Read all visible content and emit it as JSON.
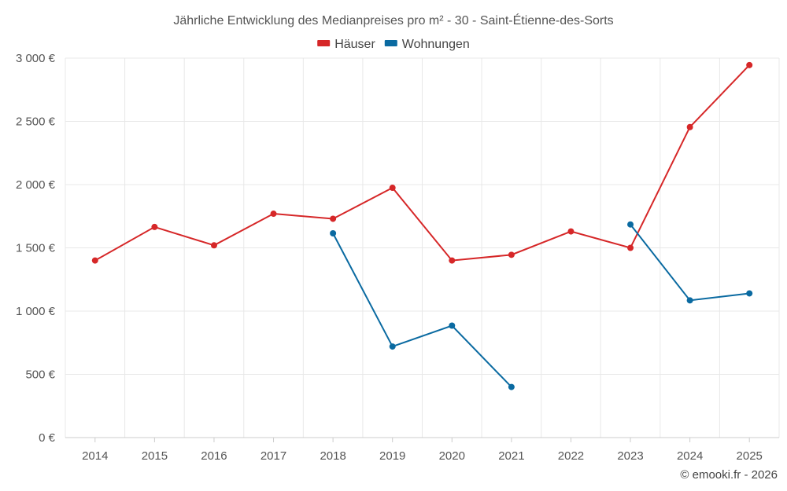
{
  "chart_data": {
    "type": "line",
    "title": "Jährliche Entwicklung des Medianpreises pro m² - 30 - Saint-Étienne-des-Sorts",
    "xlabel": "",
    "ylabel": "",
    "categories": [
      "2014",
      "2015",
      "2016",
      "2017",
      "2018",
      "2019",
      "2020",
      "2021",
      "2022",
      "2023",
      "2024",
      "2025"
    ],
    "ylim": [
      0,
      3000
    ],
    "yticks": [
      0,
      500,
      1000,
      1500,
      2000,
      2500,
      3000
    ],
    "ytick_labels": [
      "0 €",
      "500 €",
      "1 000 €",
      "1 500 €",
      "2 000 €",
      "2 500 €",
      "3 000 €"
    ],
    "grid": true,
    "legend_position": "top-center",
    "series": [
      {
        "name": "Häuser",
        "color": "#d62728",
        "values": [
          1400,
          1665,
          1520,
          1770,
          1730,
          1975,
          1400,
          1445,
          1630,
          1500,
          2455,
          2945
        ]
      },
      {
        "name": "Wohnungen",
        "color": "#0a6aa1",
        "values": [
          null,
          null,
          null,
          null,
          1615,
          720,
          885,
          400,
          null,
          1685,
          1085,
          1140
        ]
      }
    ]
  },
  "credit": "© emooki.fr - 2026"
}
